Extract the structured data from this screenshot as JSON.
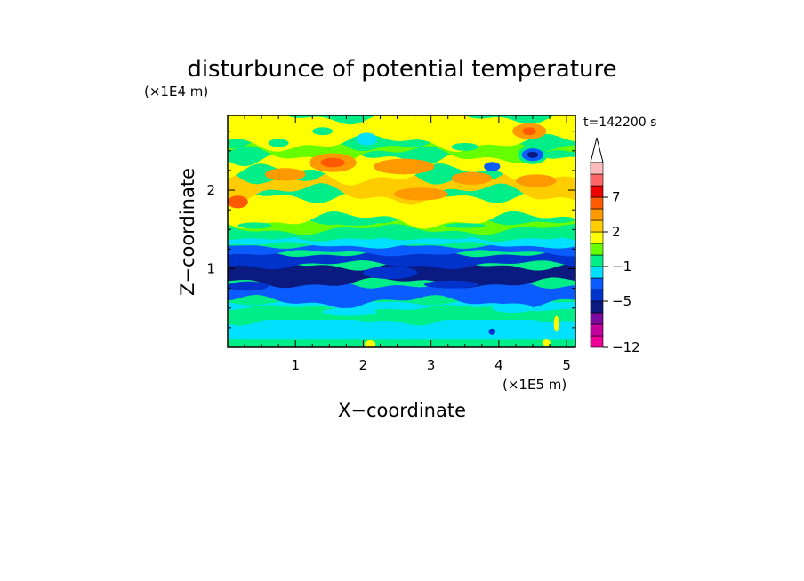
{
  "chart_data": {
    "type": "heatmap",
    "title": "disturbunce of potential temperature",
    "xlabel": "X−coordinate",
    "ylabel": "Z−coordinate",
    "x_unit": "(×1E5 m)",
    "y_unit": "(×1E4 m)",
    "time_label": "t=142200 s",
    "xlim": [
      0,
      5.13
    ],
    "ylim": [
      0,
      2.95
    ],
    "x_ticks": [
      1,
      2,
      3,
      4,
      5
    ],
    "y_ticks": [
      1,
      2
    ],
    "x_tick_labels": [
      "1",
      "2",
      "3",
      "4",
      "5"
    ],
    "y_tick_labels": [
      "1",
      "2"
    ],
    "colorbar": {
      "colors": [
        "#ee0099",
        "#c4009f",
        "#7c0a9e",
        "#0a1a80",
        "#0033cc",
        "#0a5cff",
        "#00e0ff",
        "#00ee88",
        "#66ff00",
        "#ffff00",
        "#ffcc00",
        "#ff9900",
        "#ff5a00",
        "#ee0000",
        "#ff6666",
        "#ffbbbb"
      ],
      "tick_labels": [
        "−12",
        "−5",
        "−1",
        "2",
        "7"
      ],
      "tick_levels": [
        0,
        4,
        7,
        10,
        13
      ],
      "extend": "max"
    },
    "bands": [
      {
        "z0": 0.0,
        "z1": 0.1,
        "level": 7,
        "amp": 0.0
      },
      {
        "z0": 0.1,
        "z1": 0.35,
        "level": 6,
        "amp": 0.0
      },
      {
        "z0": 0.35,
        "z1": 0.5,
        "level": 7,
        "amp": 0.05
      },
      {
        "z0": 0.5,
        "z1": 0.58,
        "level": 6,
        "amp": 0.03
      },
      {
        "z0": 0.58,
        "z1": 0.82,
        "level": 5,
        "amp": 0.06
      },
      {
        "z0": 0.82,
        "z1": 1.05,
        "level": 3,
        "amp": 0.05
      },
      {
        "z0": 1.05,
        "z1": 1.2,
        "level": 4,
        "amp": 0.04
      },
      {
        "z0": 1.2,
        "z1": 1.3,
        "level": 5,
        "amp": 0.03
      },
      {
        "z0": 1.3,
        "z1": 1.4,
        "level": 6,
        "amp": 0.03
      },
      {
        "z0": 1.4,
        "z1": 1.5,
        "level": 7,
        "amp": 0.04
      },
      {
        "z0": 1.5,
        "z1": 1.62,
        "level": 8,
        "amp": 0.05
      },
      {
        "z0": 1.62,
        "z1": 1.95,
        "level": 9,
        "amp": 0.08
      },
      {
        "z0": 1.95,
        "z1": 2.2,
        "level": 10,
        "amp": 0.1
      },
      {
        "z0": 2.2,
        "z1": 2.45,
        "level": 9,
        "amp": 0.1
      },
      {
        "z0": 2.45,
        "z1": 2.6,
        "level": 8,
        "amp": 0.08
      },
      {
        "z0": 2.6,
        "z1": 2.95,
        "level": 9,
        "amp": 0.08
      }
    ],
    "blobs": [
      {
        "x": 1.55,
        "z": 2.35,
        "rx": 0.35,
        "rz": 0.12,
        "level": 11
      },
      {
        "x": 1.55,
        "z": 2.35,
        "rx": 0.18,
        "rz": 0.06,
        "level": 12
      },
      {
        "x": 2.6,
        "z": 2.3,
        "rx": 0.45,
        "rz": 0.1,
        "level": 11
      },
      {
        "x": 0.85,
        "z": 2.2,
        "rx": 0.3,
        "rz": 0.08,
        "level": 11
      },
      {
        "x": 0.15,
        "z": 1.85,
        "rx": 0.15,
        "rz": 0.08,
        "level": 12
      },
      {
        "x": 2.85,
        "z": 1.95,
        "rx": 0.4,
        "rz": 0.08,
        "level": 11
      },
      {
        "x": 3.6,
        "z": 2.15,
        "rx": 0.3,
        "rz": 0.08,
        "level": 11
      },
      {
        "x": 4.55,
        "z": 2.12,
        "rx": 0.3,
        "rz": 0.08,
        "level": 11
      },
      {
        "x": 4.45,
        "z": 2.75,
        "rx": 0.25,
        "rz": 0.1,
        "level": 11
      },
      {
        "x": 4.45,
        "z": 2.75,
        "rx": 0.1,
        "rz": 0.05,
        "level": 12
      },
      {
        "x": 4.5,
        "z": 2.45,
        "rx": 0.22,
        "rz": 0.12,
        "level": 7
      },
      {
        "x": 4.5,
        "z": 2.45,
        "rx": 0.16,
        "rz": 0.08,
        "level": 5
      },
      {
        "x": 4.5,
        "z": 2.45,
        "rx": 0.08,
        "rz": 0.04,
        "level": 3
      },
      {
        "x": 3.9,
        "z": 2.3,
        "rx": 0.12,
        "rz": 0.06,
        "level": 5
      },
      {
        "x": 1.4,
        "z": 2.75,
        "rx": 0.15,
        "rz": 0.05,
        "level": 7
      },
      {
        "x": 0.75,
        "z": 2.6,
        "rx": 0.15,
        "rz": 0.05,
        "level": 7
      },
      {
        "x": 2.05,
        "z": 2.65,
        "rx": 0.15,
        "rz": 0.08,
        "level": 6
      },
      {
        "x": 3.5,
        "z": 2.55,
        "rx": 0.2,
        "rz": 0.05,
        "level": 7
      },
      {
        "x": 0.4,
        "z": 1.55,
        "rx": 0.25,
        "rz": 0.04,
        "level": 7
      },
      {
        "x": 1.9,
        "z": 1.58,
        "rx": 0.3,
        "rz": 0.03,
        "level": 7
      },
      {
        "x": 3.5,
        "z": 1.55,
        "rx": 0.3,
        "rz": 0.03,
        "level": 7
      },
      {
        "x": 2.4,
        "z": 0.95,
        "rx": 0.4,
        "rz": 0.08,
        "level": 4
      },
      {
        "x": 3.3,
        "z": 0.8,
        "rx": 0.4,
        "rz": 0.05,
        "level": 4
      },
      {
        "x": 0.3,
        "z": 0.78,
        "rx": 0.3,
        "rz": 0.06,
        "level": 4
      },
      {
        "x": 1.8,
        "z": 0.45,
        "rx": 0.4,
        "rz": 0.05,
        "level": 6
      },
      {
        "x": 4.2,
        "z": 0.5,
        "rx": 0.3,
        "rz": 0.06,
        "level": 6
      },
      {
        "x": 2.1,
        "z": 0.04,
        "rx": 0.08,
        "rz": 0.05,
        "level": 9
      },
      {
        "x": 4.85,
        "z": 0.3,
        "rx": 0.04,
        "rz": 0.1,
        "level": 9
      },
      {
        "x": 4.7,
        "z": 0.06,
        "rx": 0.06,
        "rz": 0.04,
        "level": 9
      },
      {
        "x": 3.9,
        "z": 0.2,
        "rx": 0.05,
        "rz": 0.04,
        "level": 4
      }
    ]
  }
}
